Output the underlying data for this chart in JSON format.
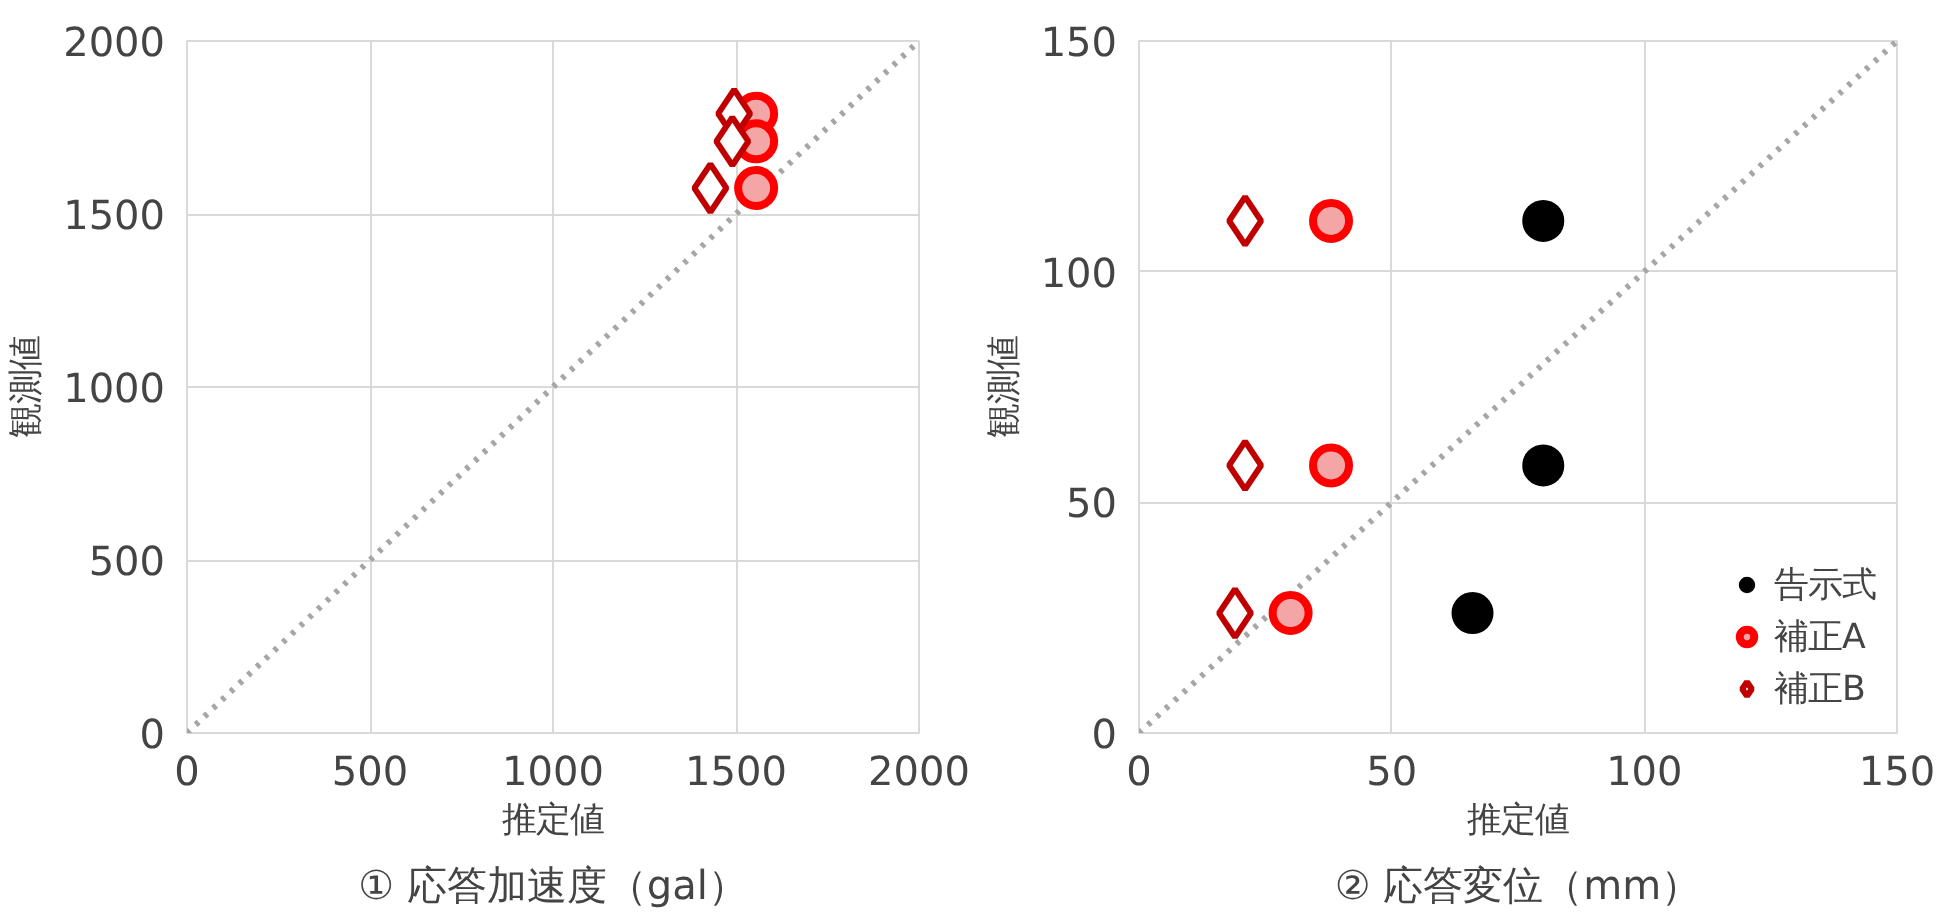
{
  "chart_data": [
    {
      "type": "scatter",
      "title": "① 応答加速度（gal）",
      "xlabel": "推定値",
      "ylabel": "観測値",
      "xlim": [
        0,
        2000
      ],
      "ylim": [
        0,
        2000
      ],
      "xticks": [
        0,
        500,
        1000,
        1500,
        2000
      ],
      "yticks": [
        0,
        500,
        1000,
        1500,
        2000
      ],
      "grid": true,
      "series": [
        {
          "color": "#ff0000",
          "marker": "circle",
          "x": [
            1555,
            1555,
            1555
          ],
          "values": [
            1790,
            1710,
            1575
          ]
        },
        {
          "color": "#c00000",
          "marker": "diamond",
          "x": [
            1495,
            1490,
            1430
          ],
          "values": [
            1790,
            1710,
            1575
          ]
        },
        {
          "type": "line",
          "color": "#a6a6a6",
          "line_style": "dotted",
          "x": [
            0,
            2000
          ],
          "values": [
            0,
            2000
          ]
        }
      ]
    },
    {
      "type": "scatter",
      "title": "② 応答変位（mm）",
      "xlabel": "推定値",
      "ylabel": "観測値",
      "xlim": [
        0,
        150
      ],
      "ylim": [
        0,
        150
      ],
      "xticks": [
        0,
        50,
        100,
        150
      ],
      "yticks": [
        0,
        50,
        100,
        150
      ],
      "grid": true,
      "legend": "bottom right",
      "series": [
        {
          "name": "告示式",
          "color": "#000000",
          "marker": "circle",
          "x": [
            80,
            80,
            66
          ],
          "values": [
            111,
            58,
            26
          ]
        },
        {
          "name": "補正A",
          "color": "#ff0000",
          "marker": "circle",
          "x": [
            38,
            38,
            30
          ],
          "values": [
            111,
            58,
            26
          ]
        },
        {
          "name": "補正B",
          "color": "#c00000",
          "marker": "diamond",
          "x": [
            21,
            21,
            19
          ],
          "values": [
            111,
            58,
            26
          ]
        },
        {
          "type": "line",
          "color": "#a6a6a6",
          "line_style": "dotted",
          "x": [
            0,
            150
          ],
          "values": [
            0,
            150
          ]
        }
      ]
    }
  ]
}
